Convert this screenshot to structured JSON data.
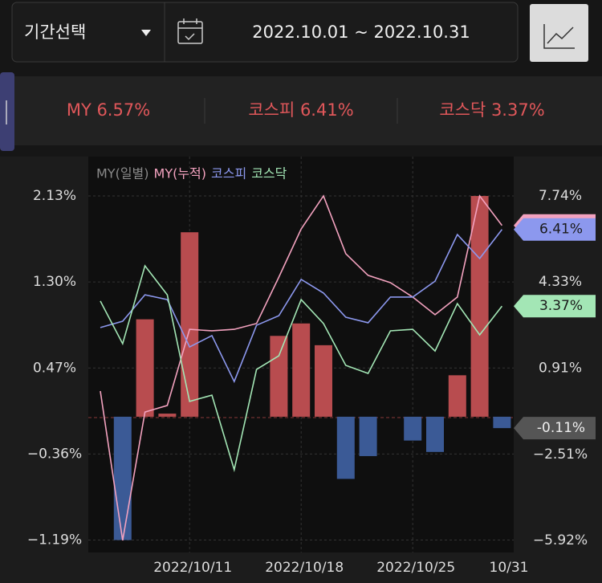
{
  "header": {
    "period_select": "기간선택",
    "date_range": "2022.10.01 ~ 2022.10.31"
  },
  "summary": [
    "MY 6.57%",
    "코스피 6.41%",
    "코스닥 3.37%"
  ],
  "chart_data": {
    "type": "combo",
    "categories": [
      null,
      null,
      null,
      null,
      "2022/10/11",
      null,
      null,
      null,
      null,
      "2022/10/18",
      null,
      null,
      null,
      null,
      "2022/10/25",
      null,
      null,
      null,
      "10/31"
    ],
    "series": [
      {
        "name": "MY(일별)",
        "type": "bar",
        "axis": "y",
        "color": "#b84c4f",
        "negative_color": "#3b5a96",
        "label_color": "#8a8a8a",
        "values": [
          0,
          -1.19,
          0.94,
          0.03,
          1.78,
          0,
          0,
          0,
          0.78,
          0.9,
          0.69,
          -0.6,
          -0.38,
          0,
          -0.23,
          -0.34,
          0.4,
          2.13,
          -0.11
        ],
        "value_labels": [
          null,
          null,
          null,
          null,
          null,
          null,
          null,
          null,
          null,
          null,
          null,
          null,
          null,
          null,
          null,
          null,
          null,
          null,
          "-0.11%"
        ]
      },
      {
        "name": "MY(누적)",
        "type": "line",
        "axis": "y2",
        "color": "#f3a2bf",
        "values": [
          0,
          -5.92,
          -0.83,
          -0.57,
          2.45,
          2.39,
          2.45,
          2.68,
          4.52,
          6.43,
          7.74,
          5.45,
          4.59,
          4.3,
          3.73,
          3.03,
          3.73,
          7.74,
          6.57
        ]
      },
      {
        "name": "코스피",
        "type": "line",
        "axis": "y2",
        "color": "#8c98ee",
        "values": [
          2.52,
          2.77,
          3.82,
          3.63,
          1.75,
          2.2,
          0.38,
          2.61,
          2.99,
          4.43,
          3.89,
          2.93,
          2.71,
          3.73,
          3.73,
          4.36,
          6.21,
          5.26,
          6.41
        ],
        "value_labels": [
          null,
          null,
          null,
          null,
          null,
          null,
          null,
          null,
          null,
          null,
          null,
          null,
          null,
          null,
          null,
          null,
          null,
          null,
          "6.41%"
        ]
      },
      {
        "name": "코스닥",
        "type": "line",
        "axis": "y2",
        "color": "#a3e6b5",
        "values": [
          3.57,
          1.88,
          4.97,
          3.82,
          -0.41,
          -0.16,
          -3.12,
          0.86,
          1.4,
          3.63,
          2.68,
          1.02,
          0.7,
          2.39,
          2.45,
          1.59,
          3.47,
          2.23,
          3.37
        ],
        "value_labels": [
          null,
          null,
          null,
          null,
          null,
          null,
          null,
          null,
          null,
          null,
          null,
          null,
          null,
          null,
          null,
          null,
          null,
          null,
          "3.37%"
        ]
      }
    ],
    "ylim": [
      -1.31,
      2.51
    ],
    "yticks": [
      {
        "value": 2.13,
        "label": "2.13%"
      },
      {
        "value": 1.3,
        "label": "1.30%"
      },
      {
        "value": 0.47,
        "label": "0.47%"
      },
      {
        "value": -0.36,
        "label": "−0.36%"
      },
      {
        "value": -1.19,
        "label": "−1.19%"
      }
    ],
    "y2lim": [
      -6.4,
      9.3
    ],
    "y2ticks": [
      {
        "value": 7.74,
        "label": "7.74%"
      },
      {
        "value": 4.33,
        "label": "4.33%"
      },
      {
        "value": 0.91,
        "label": "0.91%"
      },
      {
        "value": -2.51,
        "label": "−2.51%"
      },
      {
        "value": -5.92,
        "label": "−5.92%"
      }
    ],
    "grid": true
  }
}
